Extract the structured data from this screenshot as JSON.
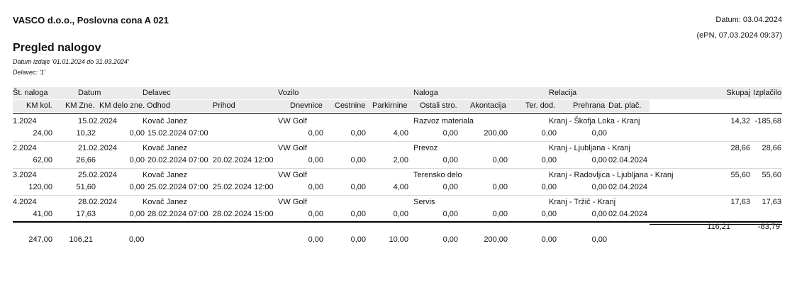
{
  "header": {
    "company": "VASCO d.o.o., Poslovna cona A 021",
    "date": "Datum: 03.04.2024",
    "generated": "(ePN, 07.03.2024 09:37)",
    "title": "Pregled nalogov",
    "period": "Datum izdaje '01.01.2024 do 31.03.2024'",
    "worker": "Delavec: '1'"
  },
  "columns": {
    "row1": {
      "number": "Št. naloga",
      "date": "Datum",
      "worker": "Delavec",
      "vehicle": "Vozilo",
      "task": "Naloga",
      "route": "Relacija",
      "total": "Skupaj",
      "payout": "Izplačilo"
    },
    "row2": {
      "km": "KM kol.",
      "km_amount": "KM Zne.",
      "km_work_amount": "KM delo zne.",
      "departure": "Odhod",
      "arrival": "Prihod",
      "allowances": "Dnevnice",
      "tolls": "Cestnine",
      "parking": "Parkirnine",
      "other": "Ostali stro.",
      "advance": "Akontacija",
      "field_allowance": "Ter. dod.",
      "meals": "Prehrana",
      "payment_date": "Dat. plač."
    }
  },
  "records": [
    {
      "line1": {
        "number": "1.2024",
        "date": "15.02.2024",
        "worker": "Kovač Janez",
        "vehicle": "VW Golf",
        "task": "Razvoz materiala",
        "route": "Kranj - Škofja Loka - Kranj",
        "total": "14,32",
        "payout": "-185,68"
      },
      "line2": {
        "km": "24,00",
        "km_amount": "10,32",
        "km_work_amount": "0,00",
        "departure": "15.02.2024 07:00",
        "allowances": "0,00",
        "tolls": "0,00",
        "parking": "4,00",
        "other": "0,00",
        "advance": "200,00",
        "field_allowance": "0,00",
        "meals": "0,00"
      }
    },
    {
      "line1": {
        "number": "2.2024",
        "date": "21.02.2024",
        "worker": "Kovač Janez",
        "vehicle": "VW Golf",
        "task": "Prevoz",
        "route": "Kranj - Ljubljana - Kranj",
        "total": "28,66",
        "payout": "28,66"
      },
      "line2": {
        "km": "62,00",
        "km_amount": "26,66",
        "km_work_amount": "0,00",
        "departure": "20.02.2024 07:00",
        "arrival": "20.02.2024 12:00",
        "allowances": "0,00",
        "tolls": "0,00",
        "parking": "2,00",
        "other": "0,00",
        "advance": "0,00",
        "field_allowance": "0,00",
        "meals": "0,00",
        "payment_date": "02.04.2024"
      }
    },
    {
      "line1": {
        "number": "3.2024",
        "date": "25.02.2024",
        "worker": "Kovač Janez",
        "vehicle": "VW Golf",
        "task": "Terensko delo",
        "route": "Kranj - Radovljica - Ljubljana - Kranj",
        "total": "55,60",
        "payout": "55,60"
      },
      "line2": {
        "km": "120,00",
        "km_amount": "51,60",
        "km_work_amount": "0,00",
        "departure": "25.02.2024 07:00",
        "arrival": "25.02.2024 12:00",
        "allowances": "0,00",
        "tolls": "0,00",
        "parking": "4,00",
        "other": "0,00",
        "advance": "0,00",
        "field_allowance": "0,00",
        "meals": "0,00",
        "payment_date": "02.04.2024"
      }
    },
    {
      "line1": {
        "number": "4.2024",
        "date": "28.02.2024",
        "worker": "Kovač Janez",
        "vehicle": "VW Golf",
        "task": "Servis",
        "route": "Kranj - Tržič - Kranj",
        "total": "17,63",
        "payout": "17,63"
      },
      "line2": {
        "km": "41,00",
        "km_amount": "17,63",
        "km_work_amount": "0,00",
        "departure": "28.02.2024 07:00",
        "arrival": "28.02.2024 15:00",
        "allowances": "0,00",
        "tolls": "0,00",
        "parking": "0,00",
        "other": "0,00",
        "advance": "0,00",
        "field_allowance": "0,00",
        "meals": "0,00",
        "payment_date": "02.04.2024"
      }
    }
  ],
  "totals": {
    "top": {
      "total": "116,21",
      "payout": "-83,79"
    },
    "bottom": {
      "km": "247,00",
      "km_amount": "106,21",
      "km_work_amount": "0,00",
      "allowances": "0,00",
      "tolls": "0,00",
      "parking": "10,00",
      "other": "0,00",
      "advance": "200,00",
      "field_allowance": "0,00",
      "meals": "0,00"
    }
  }
}
